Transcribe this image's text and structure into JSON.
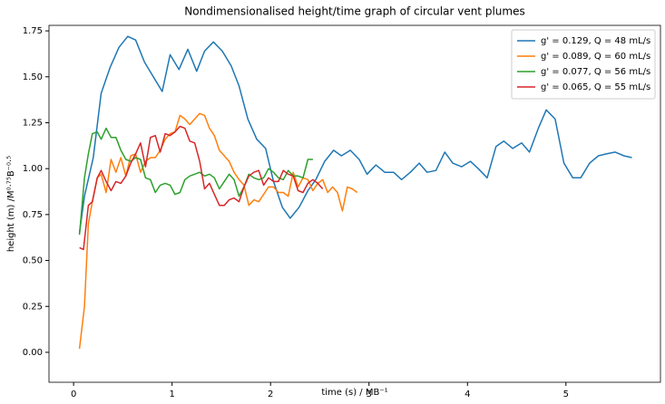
{
  "chart_data": {
    "type": "line",
    "title": "Nondimensionalised height/time graph of circular vent plumes",
    "x_label": "time (s) /  MB⁻¹",
    "y_label": "height (m) /M⁰·⁷⁵B⁻⁰·⁵",
    "xlim": [
      -0.25,
      5.96
    ],
    "ylim": [
      -0.163,
      1.78
    ],
    "xticks": [
      0,
      1,
      2,
      3,
      4,
      5
    ],
    "yticks": [
      {
        "value": 0,
        "label": "0.00"
      },
      {
        "value": 0.25,
        "label": "0.25"
      },
      {
        "value": 0.5,
        "label": "0.50"
      },
      {
        "value": 0.75,
        "label": "0.75"
      },
      {
        "value": 1,
        "label": "1.00"
      },
      {
        "value": 1.25,
        "label": "1.25"
      },
      {
        "value": 1.5,
        "label": "1.50"
      },
      {
        "value": 1.75,
        "label": "1.75"
      }
    ],
    "legend": "upper right",
    "series": [
      {
        "name": "g' = 0.129, Q = 48 mL/s",
        "color": "#1f77b4",
        "x": [
          0.06,
          0.11,
          0.2,
          0.28,
          0.37,
          0.46,
          0.55,
          0.63,
          0.72,
          0.81,
          0.9,
          0.98,
          1.07,
          1.16,
          1.25,
          1.33,
          1.42,
          1.51,
          1.6,
          1.68,
          1.77,
          1.86,
          1.95,
          2.03,
          2.12,
          2.2,
          2.29,
          2.38,
          2.46,
          2.55,
          2.64,
          2.72,
          2.81,
          2.9,
          2.98,
          3.07,
          3.16,
          3.25,
          3.33,
          3.42,
          3.51,
          3.59,
          3.68,
          3.77,
          3.85,
          3.94,
          4.03,
          4.11,
          4.2,
          4.29,
          4.37,
          4.46,
          4.55,
          4.63,
          4.72,
          4.8,
          4.89,
          4.98,
          5.07,
          5.15,
          5.24,
          5.33,
          5.41,
          5.5,
          5.59,
          5.67
        ],
        "values": [
          0.65,
          0.85,
          1.06,
          1.41,
          1.55,
          1.66,
          1.72,
          1.7,
          1.58,
          1.5,
          1.42,
          1.62,
          1.54,
          1.65,
          1.53,
          1.64,
          1.69,
          1.64,
          1.56,
          1.45,
          1.27,
          1.16,
          1.11,
          0.93,
          0.79,
          0.73,
          0.79,
          0.88,
          0.94,
          1.04,
          1.1,
          1.07,
          1.1,
          1.05,
          0.97,
          1.02,
          0.98,
          0.98,
          0.94,
          0.98,
          1.03,
          0.98,
          0.99,
          1.09,
          1.03,
          1.01,
          1.04,
          1.0,
          0.95,
          1.12,
          1.15,
          1.11,
          1.14,
          1.09,
          1.22,
          1.32,
          1.27,
          1.03,
          0.95,
          0.95,
          1.03,
          1.07,
          1.08,
          1.09,
          1.07,
          1.06
        ]
      },
      {
        "name": "g' = 0.089, Q = 60 mL/s",
        "color": "#ff7f0e",
        "x": [
          0.06,
          0.11,
          0.15,
          0.19,
          0.24,
          0.28,
          0.33,
          0.38,
          0.43,
          0.48,
          0.53,
          0.58,
          0.63,
          0.68,
          0.73,
          0.78,
          0.83,
          0.88,
          0.93,
          0.98,
          1.03,
          1.08,
          1.13,
          1.18,
          1.23,
          1.28,
          1.33,
          1.38,
          1.43,
          1.48,
          1.53,
          1.58,
          1.63,
          1.68,
          1.73,
          1.78,
          1.83,
          1.88,
          1.93,
          1.98,
          2.03,
          2.08,
          2.13,
          2.18,
          2.23,
          2.28,
          2.33,
          2.38,
          2.43,
          2.48,
          2.53,
          2.58,
          2.63,
          2.68,
          2.73,
          2.78,
          2.83,
          2.88
        ],
        "values": [
          0.02,
          0.25,
          0.7,
          0.82,
          0.95,
          0.97,
          0.87,
          1.05,
          0.98,
          1.06,
          0.96,
          1.07,
          1.08,
          0.98,
          1.04,
          1.06,
          1.06,
          1.1,
          1.16,
          1.19,
          1.2,
          1.29,
          1.27,
          1.24,
          1.27,
          1.3,
          1.29,
          1.22,
          1.18,
          1.1,
          1.07,
          1.04,
          0.98,
          0.94,
          0.91,
          0.8,
          0.83,
          0.82,
          0.86,
          0.9,
          0.9,
          0.87,
          0.87,
          0.85,
          0.98,
          0.9,
          0.95,
          0.94,
          0.88,
          0.92,
          0.94,
          0.87,
          0.9,
          0.87,
          0.77,
          0.9,
          0.89,
          0.87
        ]
      },
      {
        "name": "g' = 0.077, Q = 56 mL/s",
        "color": "#2ca02c",
        "x": [
          0.06,
          0.11,
          0.15,
          0.19,
          0.24,
          0.28,
          0.33,
          0.38,
          0.43,
          0.48,
          0.53,
          0.58,
          0.63,
          0.68,
          0.73,
          0.78,
          0.83,
          0.88,
          0.93,
          0.98,
          1.03,
          1.08,
          1.13,
          1.18,
          1.23,
          1.28,
          1.33,
          1.38,
          1.43,
          1.48,
          1.53,
          1.58,
          1.63,
          1.68,
          1.73,
          1.78,
          1.83,
          1.88,
          1.93,
          1.98,
          2.03,
          2.08,
          2.13,
          2.18,
          2.23,
          2.28,
          2.33,
          2.38,
          2.43
        ],
        "values": [
          0.64,
          0.95,
          1.08,
          1.19,
          1.2,
          1.16,
          1.22,
          1.17,
          1.17,
          1.1,
          1.05,
          1.04,
          1.06,
          1.05,
          0.95,
          0.94,
          0.87,
          0.91,
          0.92,
          0.91,
          0.86,
          0.87,
          0.94,
          0.96,
          0.97,
          0.98,
          0.96,
          0.97,
          0.95,
          0.89,
          0.93,
          0.97,
          0.94,
          0.85,
          0.9,
          0.97,
          0.95,
          0.94,
          0.95,
          1.0,
          0.98,
          0.95,
          0.94,
          0.99,
          0.96,
          0.96,
          0.95,
          1.05,
          1.05
        ]
      },
      {
        "name": "g' = 0.065, Q = 55 mL/s",
        "color": "#d62728",
        "x": [
          0.06,
          0.1,
          0.15,
          0.19,
          0.24,
          0.28,
          0.33,
          0.38,
          0.43,
          0.48,
          0.53,
          0.58,
          0.63,
          0.68,
          0.73,
          0.78,
          0.83,
          0.88,
          0.93,
          0.98,
          1.03,
          1.08,
          1.13,
          1.18,
          1.23,
          1.28,
          1.33,
          1.38,
          1.43,
          1.48,
          1.53,
          1.58,
          1.63,
          1.68,
          1.73,
          1.78,
          1.83,
          1.88,
          1.93,
          1.98,
          2.03,
          2.08,
          2.13,
          2.18,
          2.23,
          2.28,
          2.33,
          2.38,
          2.43,
          2.48,
          2.53
        ],
        "values": [
          0.57,
          0.56,
          0.8,
          0.82,
          0.95,
          0.99,
          0.93,
          0.88,
          0.93,
          0.92,
          0.96,
          1.03,
          1.08,
          1.14,
          1.01,
          1.17,
          1.18,
          1.09,
          1.19,
          1.18,
          1.2,
          1.23,
          1.22,
          1.15,
          1.14,
          1.04,
          0.89,
          0.92,
          0.86,
          0.8,
          0.8,
          0.83,
          0.84,
          0.82,
          0.9,
          0.96,
          0.98,
          0.99,
          0.91,
          0.95,
          0.93,
          0.93,
          0.99,
          0.97,
          0.96,
          0.88,
          0.87,
          0.92,
          0.94,
          0.92,
          0.89
        ]
      }
    ]
  }
}
